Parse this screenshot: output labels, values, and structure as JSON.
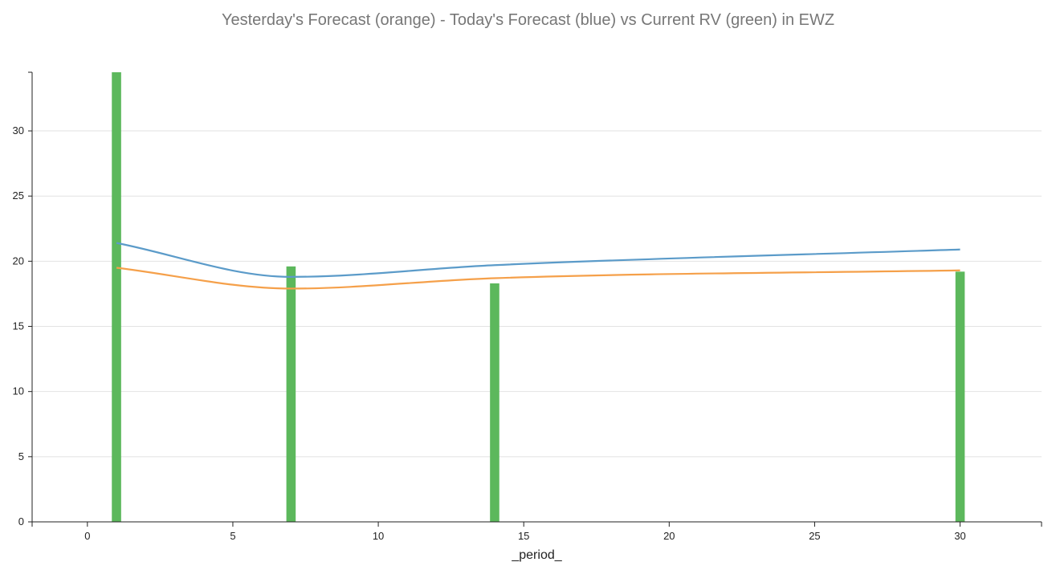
{
  "chart_data": {
    "type": "bar+line",
    "title": "Yesterday's Forecast (orange) - Today's Forecast (blue) vs Current RV (green) in EWZ",
    "xlabel": "_period_",
    "ylabel": "",
    "xlim": [
      -1.9,
      32.8
    ],
    "ylim": [
      0,
      34.5
    ],
    "xticks": [
      0,
      5,
      10,
      15,
      20,
      25,
      30
    ],
    "yticks": [
      0,
      5,
      10,
      15,
      20,
      25,
      30
    ],
    "grid": "horizontal",
    "bar_width": 0.32,
    "x": [
      1,
      7,
      14,
      30
    ],
    "series": [
      {
        "kind": "bar",
        "color": "#5cb85c",
        "values": [
          34.5,
          19.6,
          18.3,
          19.2
        ]
      },
      {
        "kind": "line",
        "color": "#5b9bc9",
        "values": [
          21.4,
          18.8,
          19.7,
          20.9
        ]
      },
      {
        "kind": "line",
        "color": "#f5a04a",
        "values": [
          19.5,
          17.9,
          18.7,
          19.3
        ]
      }
    ]
  }
}
